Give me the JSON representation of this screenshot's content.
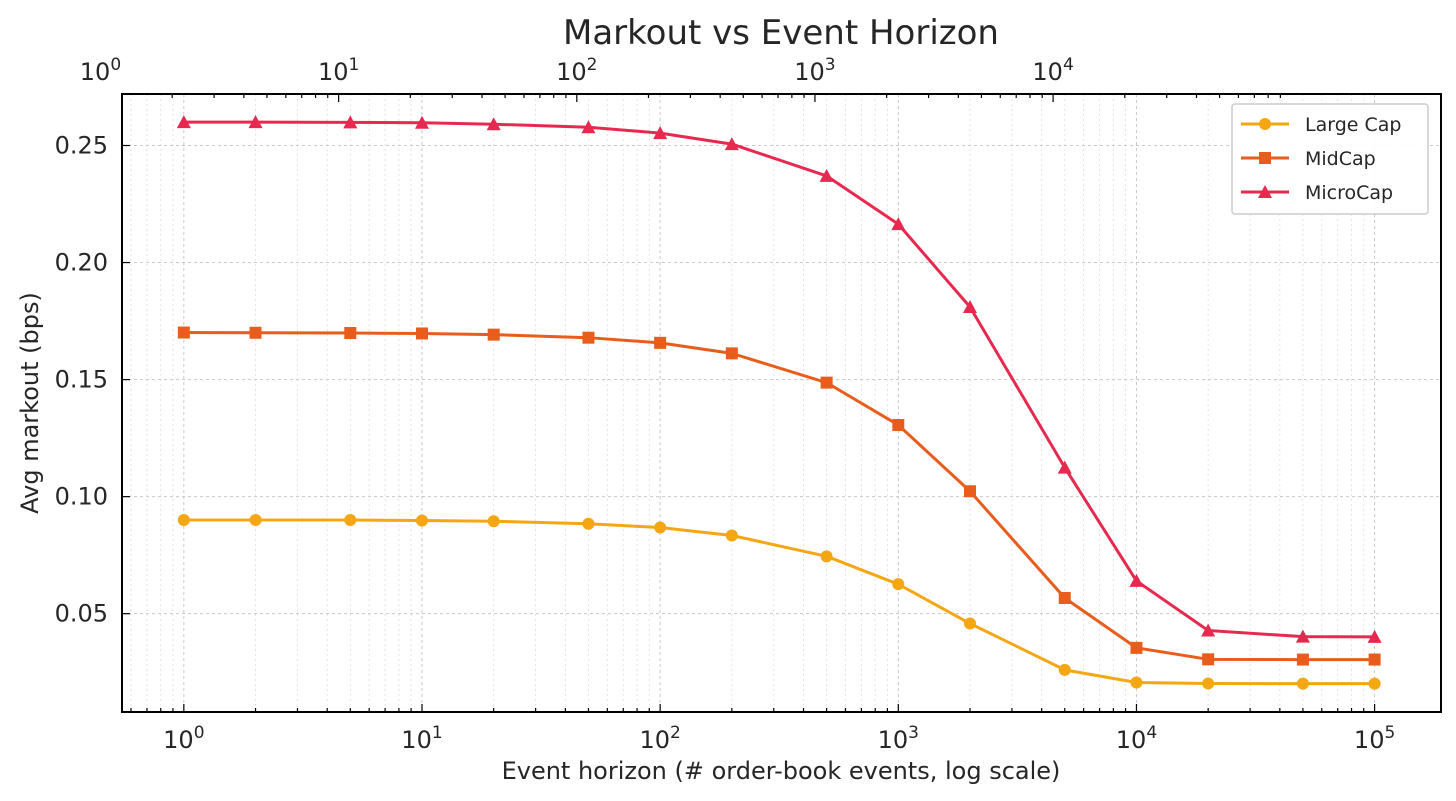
{
  "chart_data": {
    "type": "line",
    "title": "Markout vs Event Horizon",
    "xlabel": "Event horizon (# order-book events, log scale)",
    "ylabel": "Avg markout (bps)",
    "xscale": "log",
    "xlim": [
      0.55,
      190000
    ],
    "ylim": [
      0.008,
      0.272
    ],
    "grid": true,
    "legend_position": "top-right",
    "x": [
      1,
      2,
      5,
      10,
      20,
      50,
      100,
      200,
      500,
      1000,
      2000,
      5000,
      10000,
      20000,
      50000,
      100000
    ],
    "yticks": [
      0.05,
      0.1,
      0.15,
      0.2,
      0.25
    ],
    "ytick_labels": [
      "0.05",
      "0.10",
      "0.15",
      "0.20",
      "0.25"
    ],
    "xticks_bottom": [
      {
        "value": 1,
        "base": "10",
        "exp": "0"
      },
      {
        "value": 10,
        "base": "10",
        "exp": "1"
      },
      {
        "value": 100,
        "base": "10",
        "exp": "2"
      },
      {
        "value": 1000,
        "base": "10",
        "exp": "3"
      },
      {
        "value": 10000,
        "base": "10",
        "exp": "4"
      },
      {
        "value": 100000,
        "base": "10",
        "exp": "5"
      }
    ],
    "xticks_top": [
      {
        "base": "10",
        "exp": "0"
      },
      {
        "base": "10",
        "exp": "1"
      },
      {
        "base": "10",
        "exp": "2"
      },
      {
        "base": "10",
        "exp": "3"
      },
      {
        "base": "10",
        "exp": "4"
      }
    ],
    "series": [
      {
        "name": "Large Cap",
        "color": "#f5a613",
        "marker": "circle",
        "values": [
          0.09,
          0.09,
          0.09,
          0.0898,
          0.0895,
          0.0884,
          0.0868,
          0.0834,
          0.0745,
          0.0626,
          0.0458,
          0.026,
          0.0206,
          0.0202,
          0.0201,
          0.0201
        ]
      },
      {
        "name": "MidCap",
        "color": "#e85d1c",
        "marker": "square",
        "values": [
          0.1701,
          0.17,
          0.1699,
          0.1697,
          0.1692,
          0.1679,
          0.1657,
          0.1612,
          0.1487,
          0.1306,
          0.1023,
          0.0567,
          0.0354,
          0.0305,
          0.0304,
          0.0304
        ]
      },
      {
        "name": "MicroCap",
        "color": "#e8294f",
        "marker": "triangle",
        "values": [
          0.26,
          0.26,
          0.2599,
          0.2597,
          0.2591,
          0.2578,
          0.2553,
          0.2506,
          0.237,
          0.2164,
          0.181,
          0.1124,
          0.064,
          0.0428,
          0.0402,
          0.0401
        ]
      }
    ]
  }
}
